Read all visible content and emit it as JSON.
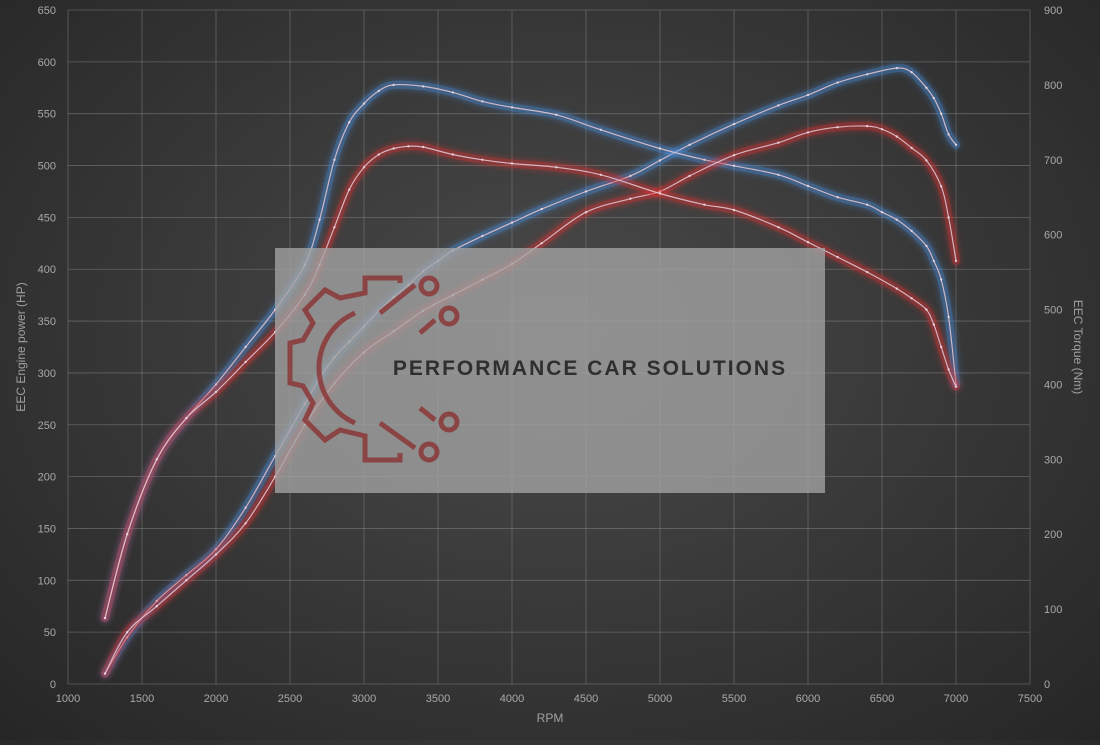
{
  "chart_data": {
    "type": "line",
    "title": "",
    "xlabel": "RPM",
    "ylabel_left": "EEC Engine power (HP)",
    "ylabel_right": "EEC Torque (Nm)",
    "xlim": [
      1000,
      7500
    ],
    "ylim_left": [
      0,
      650
    ],
    "ylim_right": [
      0,
      900
    ],
    "x_ticks": [
      1000,
      1500,
      2000,
      2500,
      3000,
      3500,
      4000,
      4500,
      5000,
      5500,
      6000,
      6500,
      7000,
      7500
    ],
    "y_ticks_left": [
      0,
      50,
      100,
      150,
      200,
      250,
      300,
      350,
      400,
      450,
      500,
      550,
      600,
      650
    ],
    "y_ticks_right": [
      0,
      100,
      200,
      300,
      400,
      500,
      600,
      700,
      800,
      900
    ],
    "grid": true,
    "legend": "none",
    "series": [
      {
        "color": "#4a90e2",
        "axis": "left",
        "x": [
          1250,
          1400,
          1600,
          1800,
          2000,
          2200,
          2400,
          2600,
          2700,
          2800,
          2900,
          3000,
          3100,
          3200,
          3300,
          3400,
          3500,
          3600,
          3800,
          4000,
          4200,
          4500,
          4800,
          5000,
          5200,
          5500,
          5800,
          6000,
          6200,
          6400,
          6600,
          6700,
          6800,
          6850,
          6900,
          6950,
          7000
        ],
        "values": [
          10,
          45,
          80,
          105,
          130,
          170,
          220,
          270,
          295,
          315,
          330,
          345,
          360,
          373,
          385,
          398,
          408,
          418,
          432,
          445,
          458,
          475,
          490,
          505,
          520,
          540,
          558,
          568,
          580,
          588,
          594,
          590,
          575,
          565,
          550,
          530,
          520
        ]
      },
      {
        "color": "#4a90e2",
        "axis": "right",
        "x": [
          1250,
          1400,
          1600,
          1800,
          2000,
          2200,
          2400,
          2600,
          2700,
          2800,
          2900,
          3000,
          3100,
          3200,
          3400,
          3600,
          3800,
          4000,
          4300,
          4600,
          5000,
          5300,
          5500,
          5800,
          6000,
          6200,
          6400,
          6500,
          6600,
          6700,
          6800,
          6850,
          6900,
          6950,
          7000
        ],
        "values": [
          88,
          200,
          300,
          355,
          400,
          450,
          500,
          560,
          620,
          700,
          750,
          775,
          792,
          800,
          798,
          790,
          778,
          770,
          760,
          740,
          715,
          700,
          692,
          680,
          665,
          650,
          640,
          630,
          620,
          605,
          585,
          565,
          540,
          490,
          400
        ]
      },
      {
        "color": "#e03030",
        "axis": "left",
        "x": [
          1250,
          1400,
          1600,
          1800,
          2000,
          2200,
          2400,
          2600,
          2800,
          3000,
          3200,
          3400,
          3600,
          3800,
          4000,
          4200,
          4500,
          4800,
          5000,
          5200,
          5500,
          5800,
          6000,
          6200,
          6400,
          6500,
          6600,
          6700,
          6800,
          6900,
          6950,
          7000
        ],
        "values": [
          10,
          50,
          75,
          100,
          125,
          155,
          200,
          250,
          290,
          320,
          340,
          360,
          375,
          390,
          405,
          425,
          455,
          468,
          475,
          490,
          510,
          522,
          532,
          537,
          538,
          535,
          528,
          517,
          505,
          480,
          450,
          408
        ]
      },
      {
        "color": "#e03030",
        "axis": "right",
        "x": [
          1250,
          1400,
          1600,
          1800,
          2000,
          2200,
          2400,
          2600,
          2700,
          2800,
          2900,
          3000,
          3100,
          3200,
          3300,
          3400,
          3600,
          3800,
          4000,
          4300,
          4600,
          5000,
          5300,
          5500,
          5800,
          6000,
          6200,
          6400,
          6600,
          6700,
          6800,
          6850,
          6900,
          6950,
          7000
        ],
        "values": [
          88,
          200,
          300,
          355,
          390,
          430,
          470,
          520,
          560,
          610,
          660,
          690,
          707,
          715,
          718,
          717,
          707,
          700,
          695,
          690,
          680,
          655,
          640,
          633,
          610,
          590,
          570,
          550,
          528,
          515,
          500,
          480,
          450,
          420,
          397
        ]
      }
    ]
  },
  "watermark": {
    "text": "PERFORMANCE CAR SOLUTIONS",
    "gear_icon": "gear-circuit-icon",
    "gear_color": "#8b2c2c"
  },
  "colors": {
    "blue": "#4a90e2",
    "red": "#e03030",
    "grid": "#8a8a8a",
    "watermark_box": "#a4a4a4"
  }
}
